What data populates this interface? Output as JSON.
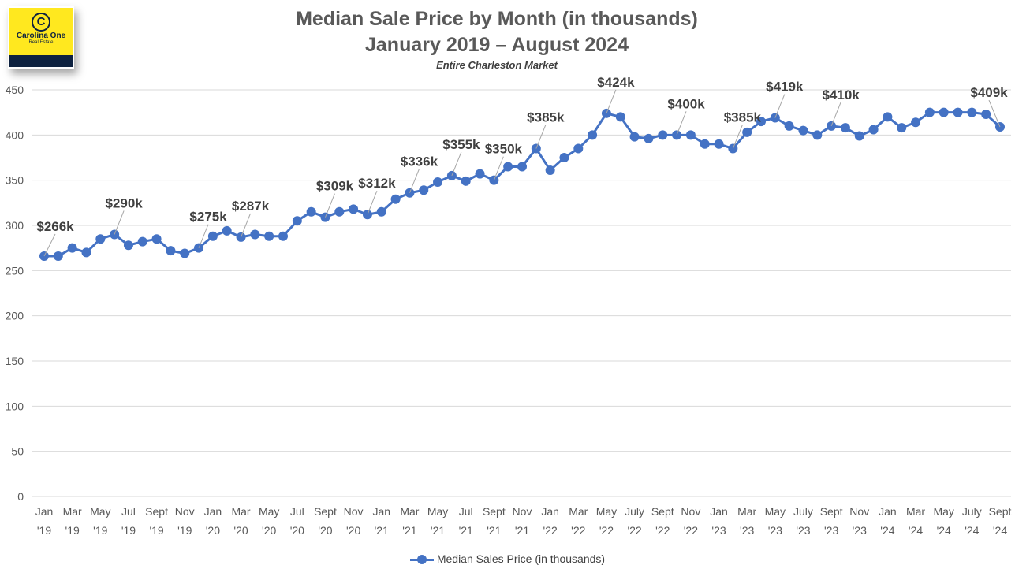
{
  "logo": {
    "name": "Carolina One",
    "sub": "Real Estate"
  },
  "chart_data": {
    "type": "line",
    "title": "Median Sale Price by Month (in thousands)",
    "title_line2": "January 2019 – August 2024",
    "subtitle": "Entire Charleston Market",
    "xlabel": "",
    "ylabel": "",
    "ylim": [
      0,
      450
    ],
    "yticks": [
      0,
      50,
      100,
      150,
      200,
      250,
      300,
      350,
      400,
      450
    ],
    "grid": true,
    "legend_position": "bottom",
    "color": "#4472c4",
    "x_tick_labels": [
      [
        "Jan",
        "'19"
      ],
      [
        "Mar",
        "'19"
      ],
      [
        "May",
        "'19"
      ],
      [
        "Jul",
        "'19"
      ],
      [
        "Sept",
        "'19"
      ],
      [
        "Nov",
        "'19"
      ],
      [
        "Jan",
        "'20"
      ],
      [
        "Mar",
        "'20"
      ],
      [
        "May",
        "'20"
      ],
      [
        "Jul",
        "'20"
      ],
      [
        "Sept",
        "'20"
      ],
      [
        "Nov",
        "'20"
      ],
      [
        "Jan",
        "'21"
      ],
      [
        "Mar",
        "'21"
      ],
      [
        "May",
        "'21"
      ],
      [
        "Jul",
        "'21"
      ],
      [
        "Sept",
        "'21"
      ],
      [
        "Nov",
        "'21"
      ],
      [
        "Jan",
        "'22"
      ],
      [
        "Mar",
        "'22"
      ],
      [
        "May",
        "'22"
      ],
      [
        "July",
        "'22"
      ],
      [
        "Sept",
        "'22"
      ],
      [
        "Nov",
        "'22"
      ],
      [
        "Jan",
        "'23"
      ],
      [
        "Mar",
        "'23"
      ],
      [
        "May",
        "'23"
      ],
      [
        "July",
        "'23"
      ],
      [
        "Sept",
        "'23"
      ],
      [
        "Nov",
        "'23"
      ],
      [
        "Jan",
        "'24"
      ],
      [
        "Mar",
        "'24"
      ],
      [
        "May",
        "'24"
      ],
      [
        "July",
        "'24"
      ],
      [
        "Sept",
        "'24"
      ]
    ],
    "series": [
      {
        "name": "Median Sales Price (in thousands)",
        "values": [
          266,
          266,
          275,
          270,
          285,
          290,
          278,
          282,
          285,
          272,
          269,
          275,
          288,
          294,
          287,
          290,
          288,
          288,
          305,
          315,
          309,
          315,
          318,
          312,
          315,
          329,
          336,
          339,
          348,
          355,
          349,
          357,
          350,
          365,
          365,
          385,
          361,
          375,
          385,
          400,
          424,
          420,
          398,
          396,
          400,
          400,
          400,
          390,
          390,
          385,
          403,
          415,
          419,
          410,
          405,
          400,
          410,
          408,
          399,
          406,
          420,
          408,
          414,
          425,
          425,
          425,
          425,
          423,
          409
        ]
      }
    ],
    "data_labels": [
      {
        "index": 0,
        "text": "$266k"
      },
      {
        "index": 5,
        "text": "$290k"
      },
      {
        "index": 11,
        "text": "$275k"
      },
      {
        "index": 14,
        "text": "$287k"
      },
      {
        "index": 20,
        "text": "$309k"
      },
      {
        "index": 23,
        "text": "$312k"
      },
      {
        "index": 26,
        "text": "$336k"
      },
      {
        "index": 29,
        "text": "$355k"
      },
      {
        "index": 32,
        "text": "$350k"
      },
      {
        "index": 35,
        "text": "$385k"
      },
      {
        "index": 40,
        "text": "$424k"
      },
      {
        "index": 45,
        "text": "$400k"
      },
      {
        "index": 49,
        "text": "$385k"
      },
      {
        "index": 52,
        "text": "$419k"
      },
      {
        "index": 56,
        "text": "$410k"
      },
      {
        "index": 68,
        "text": "$409k"
      }
    ]
  }
}
